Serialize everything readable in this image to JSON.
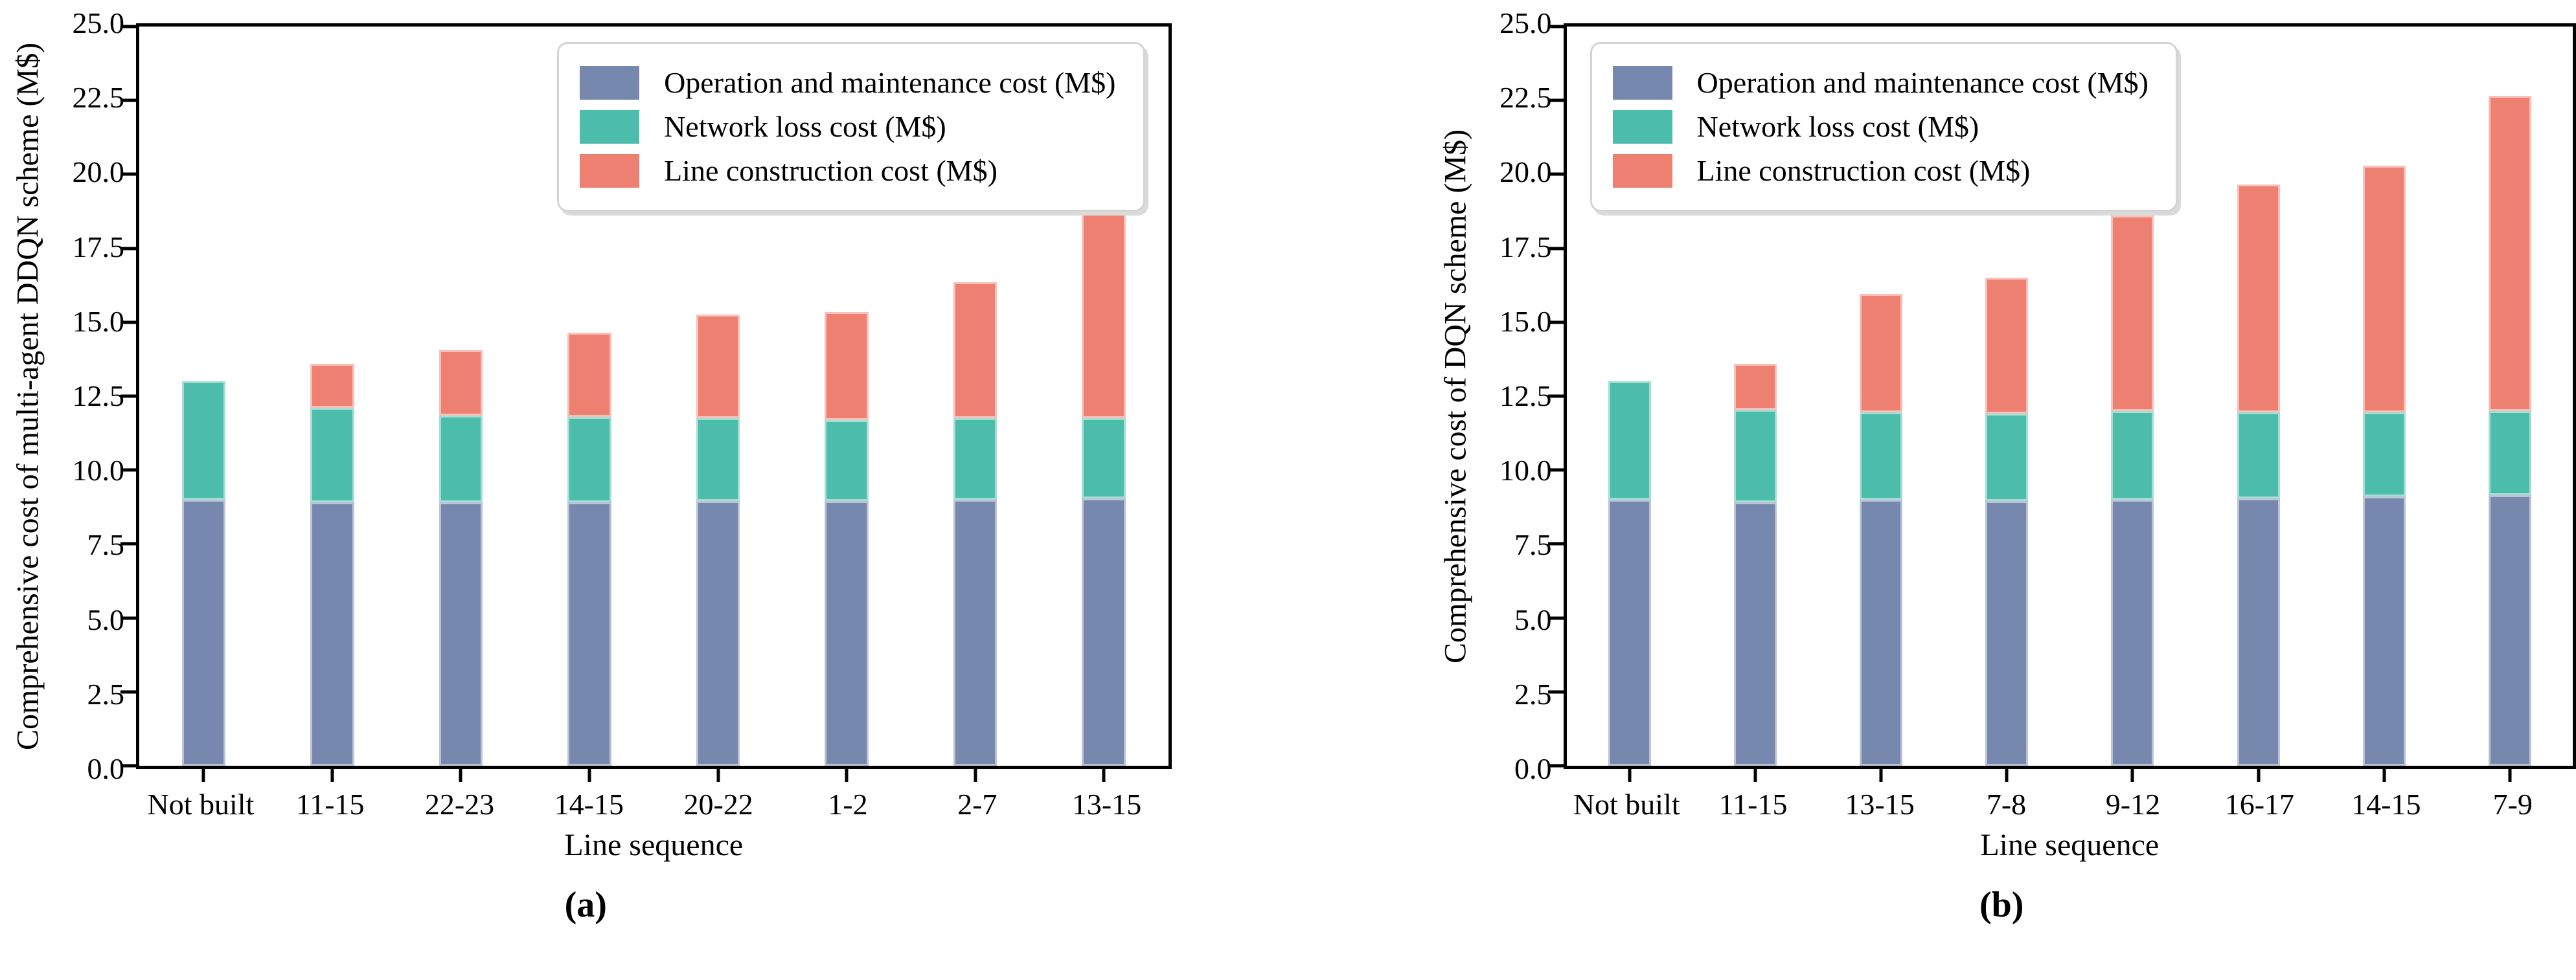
{
  "figure": {
    "background": "#ffffff",
    "styles": {
      "axis_color": "#000000",
      "bar_edge_color": "rgba(255,255,255,0.5)",
      "legend_border_color": "#d4d4d4",
      "legend_shadow_color": "#dadada"
    }
  },
  "chart_data": [
    {
      "type": "bar",
      "stacked": true,
      "ylabel": "Comprehensive cost of multi-agent DDQN scheme (M$)",
      "xlabel": "Line sequence",
      "caption": "(a)",
      "ylim": [
        0,
        25
      ],
      "ytick_values": [
        0,
        2.5,
        5,
        7.5,
        10,
        12.5,
        15,
        17.5,
        20,
        22.5,
        25
      ],
      "ytick_labels": [
        "0.0",
        "2.5",
        "5.0",
        "7.5",
        "10.0",
        "12.5",
        "15.0",
        "17.5",
        "20.0",
        "22.5",
        "25.0"
      ],
      "grid": false,
      "legend_position": "upper-right",
      "categories": [
        "Not built",
        "11-15",
        "22-23",
        "14-15",
        "20-22",
        "1-2",
        "2-7",
        "13-15"
      ],
      "series": [
        {
          "name": "Operation and maintenance cost (M$)",
          "color": "#7688ad",
          "values": [
            9.0,
            8.9,
            8.9,
            8.9,
            8.95,
            8.95,
            9.0,
            9.05
          ]
        },
        {
          "name": "Network loss cost (M$)",
          "color": "#4cbcab",
          "values": [
            4.0,
            3.2,
            2.95,
            2.9,
            2.8,
            2.75,
            2.75,
            2.7
          ]
        },
        {
          "name": "Line construction cost (M$)",
          "color": "#ee8072",
          "values": [
            0.0,
            1.5,
            2.2,
            2.85,
            3.5,
            3.65,
            4.6,
            7.0
          ]
        }
      ],
      "totals": [
        13.0,
        13.6,
        14.05,
        14.65,
        15.25,
        15.35,
        16.35,
        18.75
      ]
    },
    {
      "type": "bar",
      "stacked": true,
      "ylabel": "Comprehensive cost of DQN scheme (M$)",
      "xlabel": "Line sequence",
      "caption": "(b)",
      "ylim": [
        0,
        25
      ],
      "ytick_values": [
        0,
        2.5,
        5,
        7.5,
        10,
        12.5,
        15,
        17.5,
        20,
        22.5,
        25
      ],
      "ytick_labels": [
        "0.0",
        "2.5",
        "5.0",
        "7.5",
        "10.0",
        "12.5",
        "15.0",
        "17.5",
        "20.0",
        "22.5",
        "25.0"
      ],
      "grid": false,
      "legend_position": "upper-left",
      "categories": [
        "Not built",
        "11-15",
        "13-15",
        "7-8",
        "9-12",
        "16-17",
        "14-15",
        "7-9"
      ],
      "series": [
        {
          "name": "Operation and maintenance cost (M$)",
          "color": "#7688ad",
          "values": [
            9.0,
            8.9,
            9.0,
            8.95,
            9.0,
            9.05,
            9.1,
            9.15
          ]
        },
        {
          "name": "Network loss cost (M$)",
          "color": "#4cbcab",
          "values": [
            4.0,
            3.15,
            2.95,
            2.95,
            3.0,
            2.9,
            2.85,
            2.85
          ]
        },
        {
          "name": "Line construction cost (M$)",
          "color": "#ee8072",
          "values": [
            0.0,
            1.55,
            4.0,
            4.6,
            6.6,
            7.7,
            8.35,
            10.65
          ]
        }
      ],
      "totals": [
        13.0,
        13.6,
        15.95,
        16.5,
        18.6,
        19.65,
        20.3,
        22.65
      ]
    }
  ]
}
